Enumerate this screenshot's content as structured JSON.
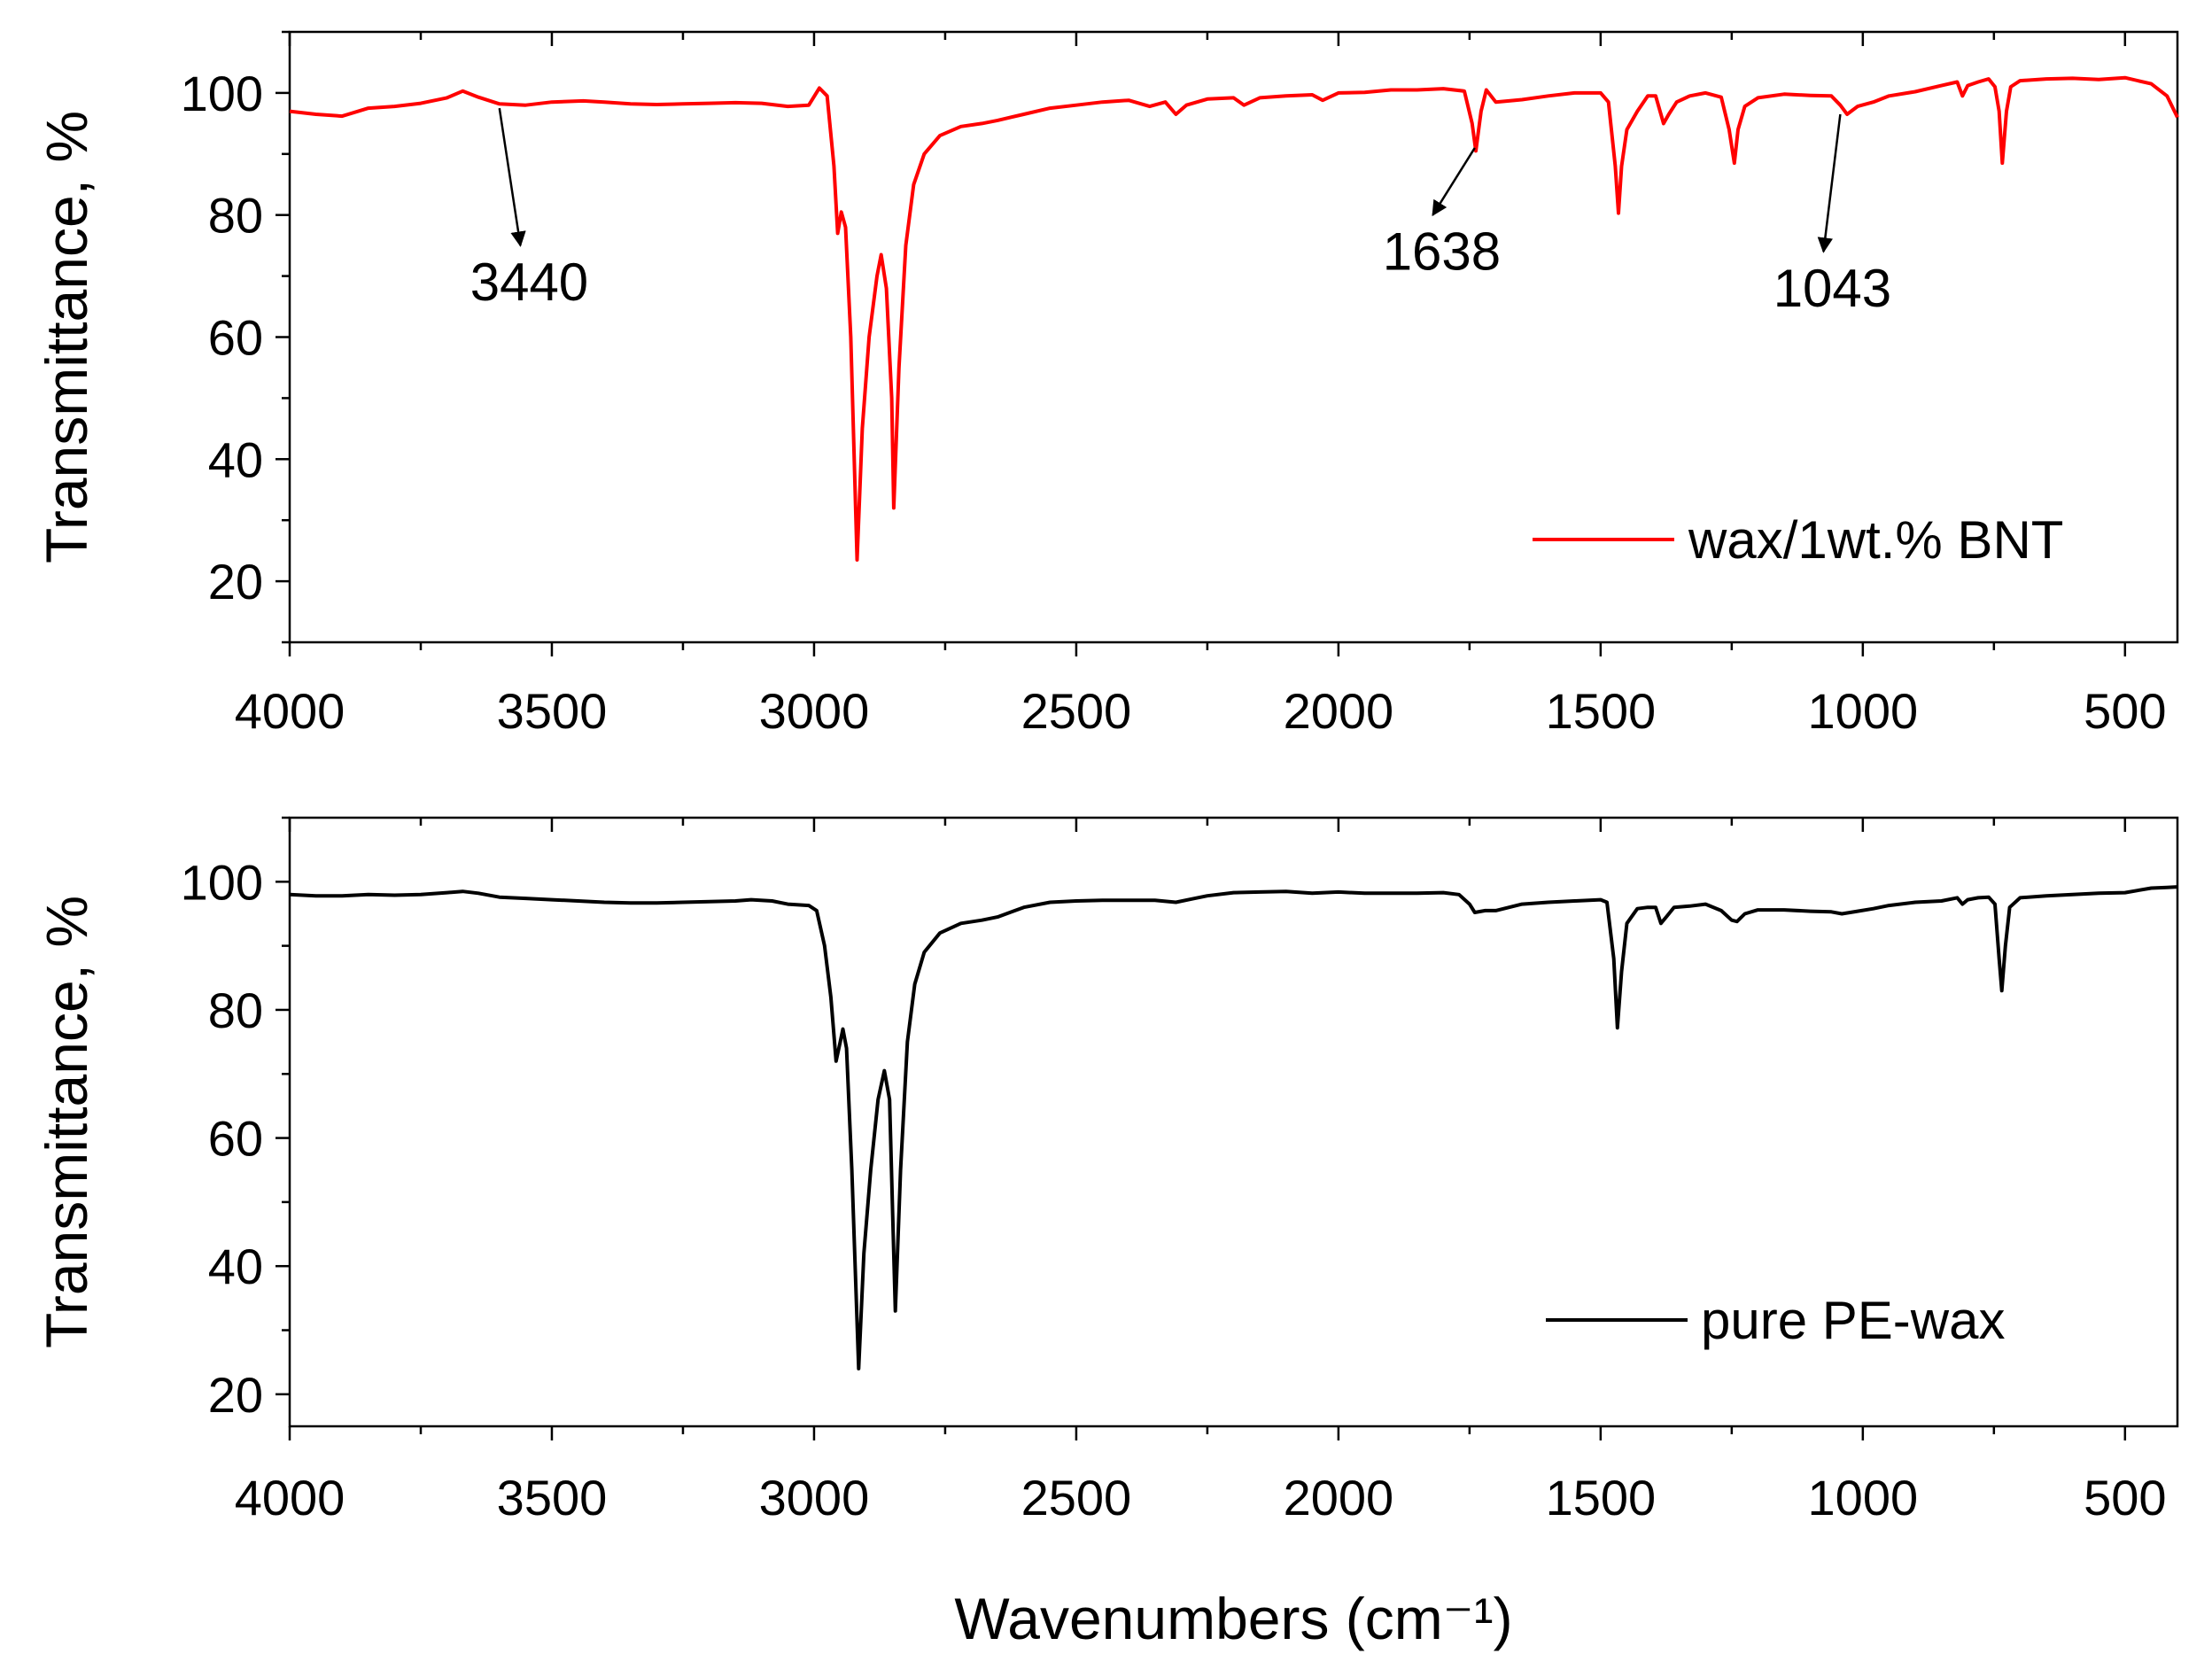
{
  "chart_data": [
    {
      "type": "line",
      "ylabel": "Transmittance, %",
      "xlabel": "",
      "xlim": [
        4000,
        400
      ],
      "ylim": [
        10,
        110
      ],
      "x_ticks": [
        "4000",
        "3500",
        "3000",
        "2500",
        "2000",
        "1500",
        "1000",
        "500"
      ],
      "y_ticks": [
        "20",
        "40",
        "60",
        "80",
        "100"
      ],
      "legend_position": "bottom-right",
      "series": [
        {
          "name": "wax/1wt.% BNT",
          "color": "#ff0000",
          "points": [
            [
              4000,
              97
            ],
            [
              3950,
              96.5
            ],
            [
              3900,
              96.2
            ],
            [
              3850,
              97.5
            ],
            [
              3800,
              97.8
            ],
            [
              3750,
              98.3
            ],
            [
              3700,
              99.2
            ],
            [
              3670,
              100.3
            ],
            [
              3640,
              99.3
            ],
            [
              3600,
              98.2
            ],
            [
              3550,
              98
            ],
            [
              3500,
              98.5
            ],
            [
              3440,
              98.7
            ],
            [
              3400,
              98.5
            ],
            [
              3350,
              98.2
            ],
            [
              3300,
              98.1
            ],
            [
              3250,
              98.2
            ],
            [
              3200,
              98.3
            ],
            [
              3150,
              98.4
            ],
            [
              3100,
              98.3
            ],
            [
              3050,
              97.8
            ],
            [
              3010,
              98
            ],
            [
              2990,
              100.8
            ],
            [
              2975,
              99.5
            ],
            [
              2962,
              88
            ],
            [
              2955,
              77
            ],
            [
              2948,
              80.5
            ],
            [
              2940,
              78
            ],
            [
              2930,
              60
            ],
            [
              2918,
              23.5
            ],
            [
              2908,
              45
            ],
            [
              2895,
              60
            ],
            [
              2880,
              70
            ],
            [
              2872,
              73.5
            ],
            [
              2862,
              68
            ],
            [
              2852,
              50
            ],
            [
              2848,
              32
            ],
            [
              2838,
              55
            ],
            [
              2825,
              75
            ],
            [
              2810,
              85
            ],
            [
              2790,
              90
            ],
            [
              2760,
              93
            ],
            [
              2720,
              94.5
            ],
            [
              2680,
              95
            ],
            [
              2650,
              95.5
            ],
            [
              2600,
              96.5
            ],
            [
              2550,
              97.5
            ],
            [
              2500,
              98
            ],
            [
              2450,
              98.5
            ],
            [
              2400,
              98.8
            ],
            [
              2360,
              97.8
            ],
            [
              2330,
              98.5
            ],
            [
              2310,
              96.5
            ],
            [
              2290,
              98
            ],
            [
              2250,
              99
            ],
            [
              2200,
              99.2
            ],
            [
              2180,
              98
            ],
            [
              2150,
              99.2
            ],
            [
              2100,
              99.5
            ],
            [
              2050,
              99.7
            ],
            [
              2030,
              98.8
            ],
            [
              2000,
              100
            ],
            [
              1950,
              100.1
            ],
            [
              1900,
              100.5
            ],
            [
              1850,
              100.5
            ],
            [
              1800,
              100.7
            ],
            [
              1760,
              100.3
            ],
            [
              1745,
              95
            ],
            [
              1738,
              90.5
            ],
            [
              1728,
              97
            ],
            [
              1718,
              100.5
            ],
            [
              1700,
              98.5
            ],
            [
              1650,
              98.9
            ],
            [
              1600,
              99.5
            ],
            [
              1550,
              100
            ],
            [
              1500,
              100
            ],
            [
              1485,
              98.5
            ],
            [
              1472,
              88
            ],
            [
              1466,
              80.3
            ],
            [
              1460,
              88
            ],
            [
              1450,
              94
            ],
            [
              1430,
              97
            ],
            [
              1410,
              99.5
            ],
            [
              1395,
              99.5
            ],
            [
              1380,
              95
            ],
            [
              1370,
              96.5
            ],
            [
              1355,
              98.5
            ],
            [
              1330,
              99.5
            ],
            [
              1300,
              100
            ],
            [
              1270,
              99.3
            ],
            [
              1255,
              94
            ],
            [
              1245,
              88.5
            ],
            [
              1238,
              94
            ],
            [
              1225,
              97.8
            ],
            [
              1200,
              99.2
            ],
            [
              1150,
              99.8
            ],
            [
              1100,
              99.6
            ],
            [
              1060,
              99.5
            ],
            [
              1043,
              98
            ],
            [
              1030,
              96.5
            ],
            [
              1010,
              97.8
            ],
            [
              980,
              98.5
            ],
            [
              950,
              99.5
            ],
            [
              900,
              100.2
            ],
            [
              850,
              101.2
            ],
            [
              820,
              101.8
            ],
            [
              810,
              99.5
            ],
            [
              800,
              101.2
            ],
            [
              780,
              101.8
            ],
            [
              760,
              102.3
            ],
            [
              748,
              101
            ],
            [
              740,
              97
            ],
            [
              734,
              88.5
            ],
            [
              726,
              97
            ],
            [
              718,
              101
            ],
            [
              700,
              102
            ],
            [
              650,
              102.3
            ],
            [
              600,
              102.4
            ],
            [
              550,
              102.2
            ],
            [
              500,
              102.5
            ],
            [
              450,
              101.5
            ],
            [
              420,
              99.5
            ],
            [
              400,
              96
            ]
          ]
        }
      ],
      "annotations": [
        {
          "text": "3440",
          "arrow_from": [
            3560,
            75
          ],
          "arrow_to": [
            3600,
            97.5
          ]
        },
        {
          "text": "1638",
          "arrow_from": [
            1820,
            80
          ],
          "arrow_to": [
            1740,
            91
          ]
        },
        {
          "text": "1043",
          "arrow_from": [
            1075,
            74
          ],
          "arrow_to": [
            1043,
            96.5
          ]
        }
      ]
    },
    {
      "type": "line",
      "ylabel": "Transmittance, %",
      "xlabel": "Wavenumbers (cm⁻¹)",
      "xlim": [
        4000,
        400
      ],
      "ylim": [
        15,
        110
      ],
      "x_ticks": [
        "4000",
        "3500",
        "3000",
        "2500",
        "2000",
        "1500",
        "1000",
        "500"
      ],
      "y_ticks": [
        "20",
        "40",
        "60",
        "80",
        "100"
      ],
      "legend_position": "bottom-right",
      "series": [
        {
          "name": "pure PE-wax",
          "color": "#000000",
          "points": [
            [
              4000,
              98
            ],
            [
              3950,
              97.8
            ],
            [
              3900,
              97.8
            ],
            [
              3850,
              98
            ],
            [
              3800,
              97.9
            ],
            [
              3750,
              98
            ],
            [
              3700,
              98.3
            ],
            [
              3670,
              98.5
            ],
            [
              3640,
              98.2
            ],
            [
              3600,
              97.6
            ],
            [
              3550,
              97.4
            ],
            [
              3500,
              97.2
            ],
            [
              3450,
              97
            ],
            [
              3400,
              96.8
            ],
            [
              3350,
              96.7
            ],
            [
              3300,
              96.7
            ],
            [
              3250,
              96.8
            ],
            [
              3200,
              96.9
            ],
            [
              3150,
              97
            ],
            [
              3120,
              97.2
            ],
            [
              3080,
              97
            ],
            [
              3050,
              96.5
            ],
            [
              3010,
              96.3
            ],
            [
              2995,
              95.5
            ],
            [
              2980,
              90
            ],
            [
              2968,
              82
            ],
            [
              2958,
              72
            ],
            [
              2950,
              75
            ],
            [
              2945,
              77
            ],
            [
              2938,
              74
            ],
            [
              2928,
              55
            ],
            [
              2915,
              24
            ],
            [
              2905,
              42
            ],
            [
              2892,
              55
            ],
            [
              2878,
              66
            ],
            [
              2866,
              70.5
            ],
            [
              2856,
              66
            ],
            [
              2850,
              48
            ],
            [
              2845,
              33
            ],
            [
              2835,
              55
            ],
            [
              2822,
              75
            ],
            [
              2808,
              84
            ],
            [
              2790,
              89
            ],
            [
              2760,
              92
            ],
            [
              2720,
              93.5
            ],
            [
              2680,
              94
            ],
            [
              2650,
              94.5
            ],
            [
              2600,
              96
            ],
            [
              2550,
              96.8
            ],
            [
              2500,
              97
            ],
            [
              2450,
              97.1
            ],
            [
              2400,
              97.1
            ],
            [
              2350,
              97.1
            ],
            [
              2310,
              96.8
            ],
            [
              2280,
              97.3
            ],
            [
              2250,
              97.8
            ],
            [
              2200,
              98.3
            ],
            [
              2150,
              98.4
            ],
            [
              2100,
              98.5
            ],
            [
              2050,
              98.2
            ],
            [
              2000,
              98.4
            ],
            [
              1950,
              98.2
            ],
            [
              1900,
              98.2
            ],
            [
              1850,
              98.2
            ],
            [
              1800,
              98.3
            ],
            [
              1770,
              98
            ],
            [
              1750,
              96.5
            ],
            [
              1740,
              95.2
            ],
            [
              1720,
              95.5
            ],
            [
              1700,
              95.5
            ],
            [
              1650,
              96.5
            ],
            [
              1600,
              96.8
            ],
            [
              1550,
              97
            ],
            [
              1500,
              97.2
            ],
            [
              1488,
              96.8
            ],
            [
              1475,
              88
            ],
            [
              1468,
              77.2
            ],
            [
              1460,
              86
            ],
            [
              1450,
              93.5
            ],
            [
              1430,
              95.8
            ],
            [
              1410,
              96
            ],
            [
              1395,
              96
            ],
            [
              1385,
              93.5
            ],
            [
              1375,
              94.5
            ],
            [
              1360,
              96
            ],
            [
              1330,
              96.2
            ],
            [
              1300,
              96.5
            ],
            [
              1270,
              95.5
            ],
            [
              1250,
              94
            ],
            [
              1240,
              93.8
            ],
            [
              1225,
              95
            ],
            [
              1200,
              95.6
            ],
            [
              1150,
              95.6
            ],
            [
              1100,
              95.4
            ],
            [
              1060,
              95.3
            ],
            [
              1040,
              95
            ],
            [
              1010,
              95.4
            ],
            [
              980,
              95.8
            ],
            [
              950,
              96.3
            ],
            [
              900,
              96.8
            ],
            [
              850,
              97
            ],
            [
              820,
              97.5
            ],
            [
              810,
              96.5
            ],
            [
              800,
              97.2
            ],
            [
              780,
              97.5
            ],
            [
              760,
              97.6
            ],
            [
              748,
              96.5
            ],
            [
              740,
              88
            ],
            [
              735,
              83
            ],
            [
              728,
              90
            ],
            [
              720,
              96
            ],
            [
              700,
              97.5
            ],
            [
              650,
              97.8
            ],
            [
              600,
              98
            ],
            [
              550,
              98.2
            ],
            [
              500,
              98.3
            ],
            [
              450,
              99
            ],
            [
              420,
              99.1
            ],
            [
              400,
              99.2
            ]
          ]
        }
      ],
      "annotations": []
    }
  ]
}
